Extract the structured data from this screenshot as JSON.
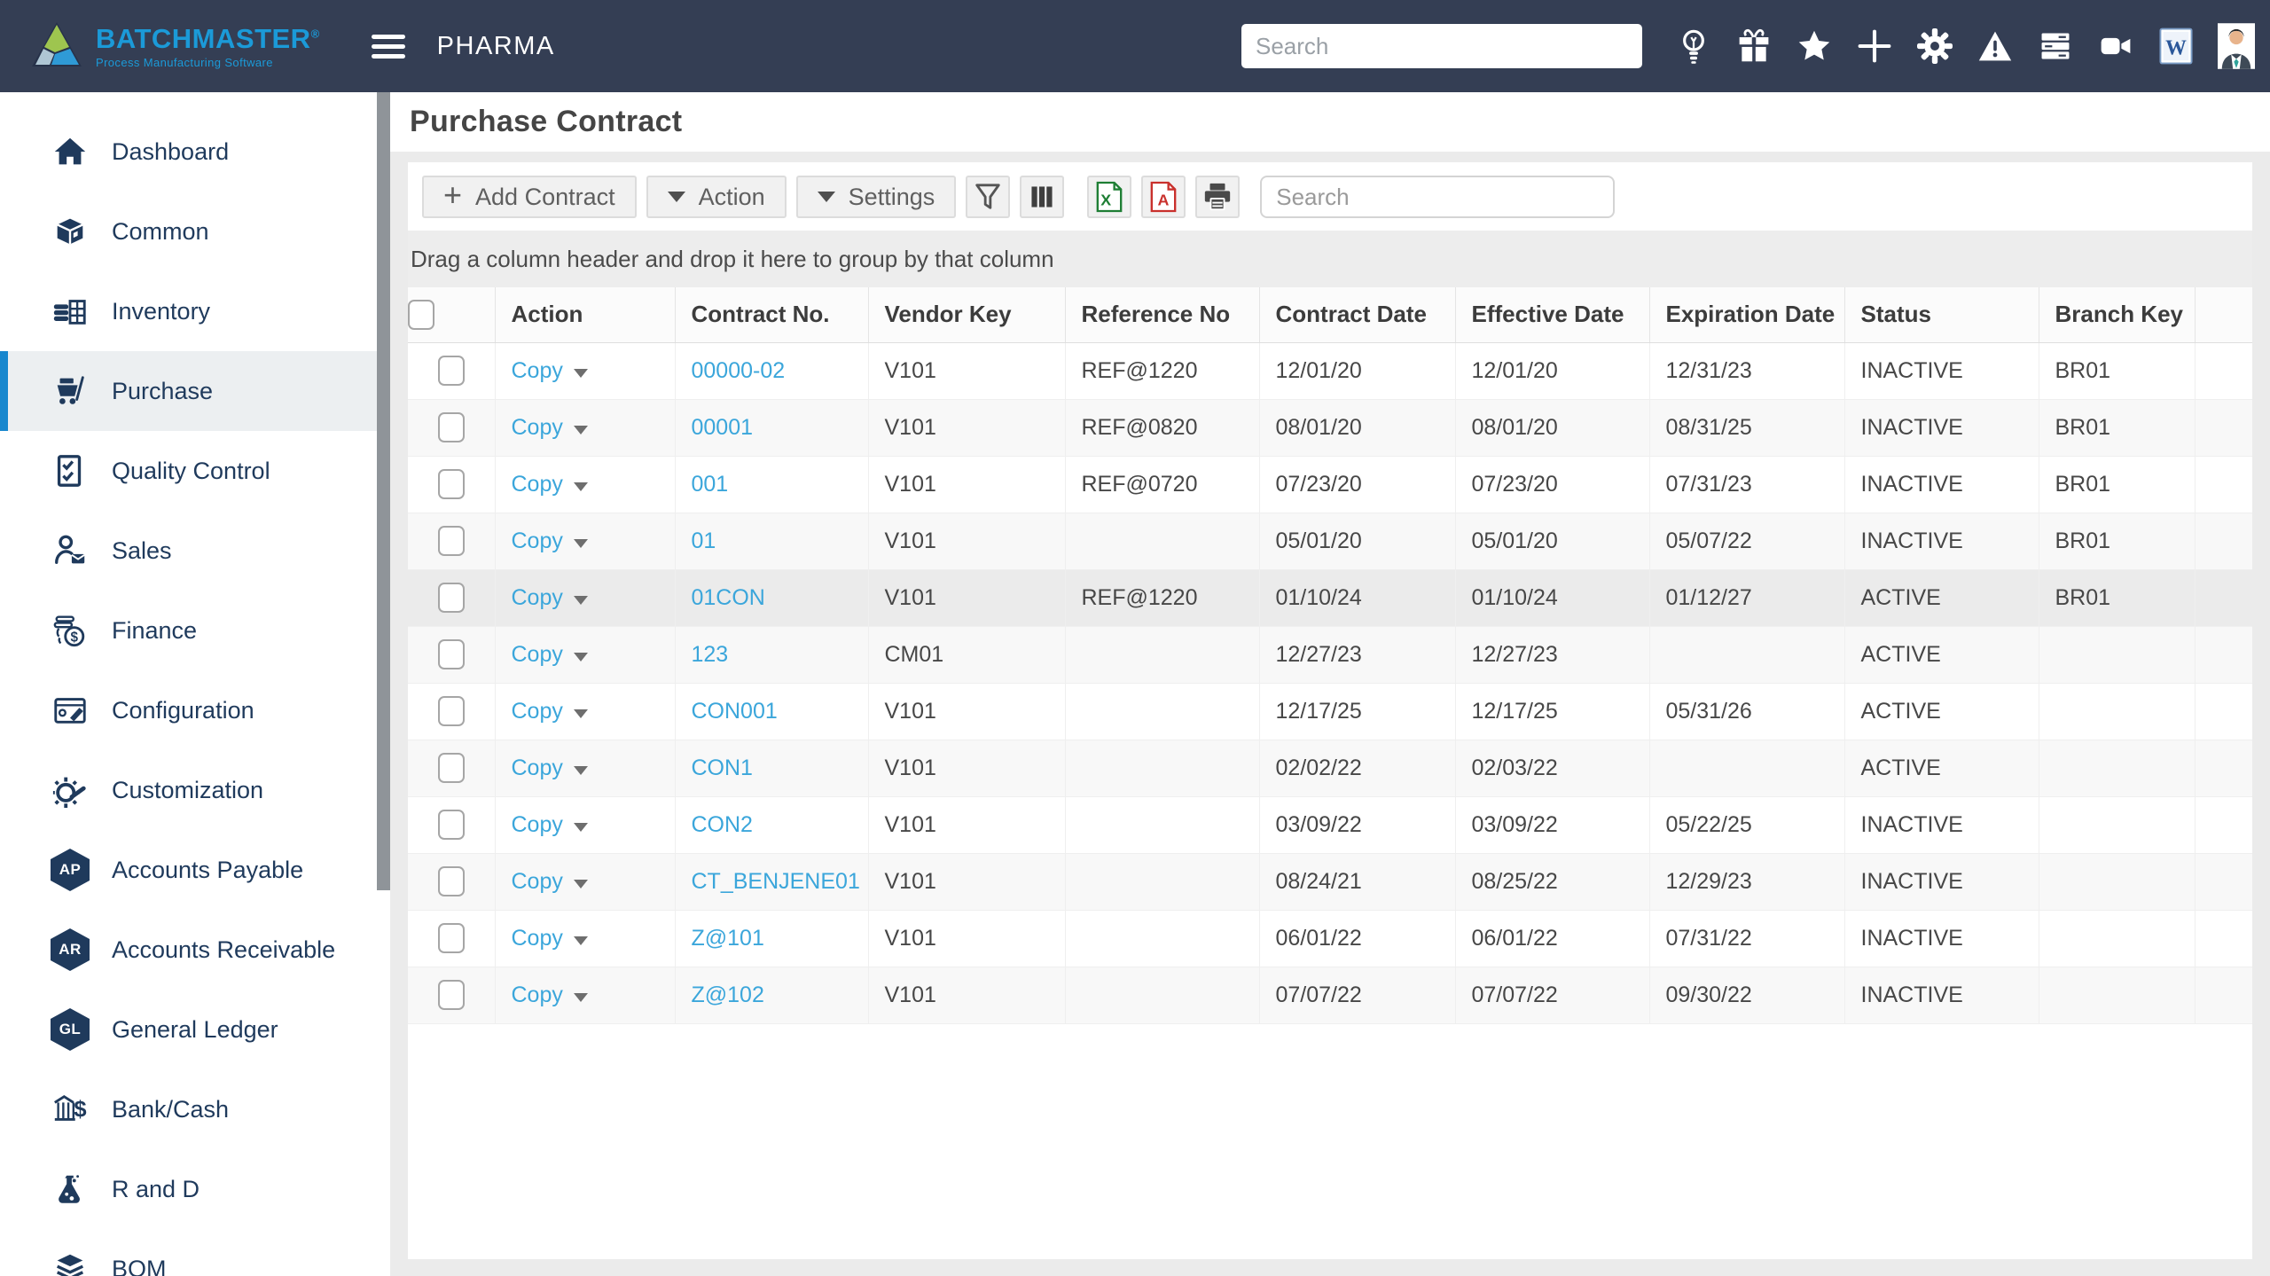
{
  "header": {
    "brand": "BATCHMASTER",
    "brand_registered": "®",
    "brand_tagline": "Process Manufacturing Software",
    "app_title": "PHARMA",
    "search": {
      "placeholder": "Search"
    },
    "icons": [
      {
        "name": "lightbulb-icon"
      },
      {
        "name": "gift-icon"
      },
      {
        "name": "star-icon"
      },
      {
        "name": "plus-icon"
      },
      {
        "name": "gear-icon"
      },
      {
        "name": "warning-icon"
      },
      {
        "name": "server-icon"
      },
      {
        "name": "video-camera-icon"
      },
      {
        "name": "word-document-icon"
      },
      {
        "name": "user-avatar"
      }
    ]
  },
  "sidebar": {
    "items": [
      {
        "label": "Dashboard",
        "icon": "home-icon",
        "active": false
      },
      {
        "label": "Common",
        "icon": "box-icon",
        "active": false
      },
      {
        "label": "Inventory",
        "icon": "inventory-icon",
        "active": false
      },
      {
        "label": "Purchase",
        "icon": "cart-icon",
        "active": true
      },
      {
        "label": "Quality Control",
        "icon": "quality-check-icon",
        "active": false
      },
      {
        "label": "Sales",
        "icon": "sales-person-icon",
        "active": false
      },
      {
        "label": "Finance",
        "icon": "finance-coins-icon",
        "active": false
      },
      {
        "label": "Configuration",
        "icon": "configuration-icon",
        "active": false
      },
      {
        "label": "Customization",
        "icon": "customization-icon",
        "active": false
      },
      {
        "label": "Accounts Payable",
        "icon": "badge",
        "badge": "AP",
        "active": false
      },
      {
        "label": "Accounts Receivable",
        "icon": "badge",
        "badge": "AR",
        "active": false
      },
      {
        "label": "General Ledger",
        "icon": "badge",
        "badge": "GL",
        "active": false
      },
      {
        "label": "Bank/Cash",
        "icon": "bank-icon",
        "active": false
      },
      {
        "label": "R and D",
        "icon": "flask-icon",
        "active": false
      },
      {
        "label": "BOM",
        "icon": "bom-layers-icon",
        "active": false
      }
    ]
  },
  "page": {
    "title": "Purchase Contract",
    "toolbar": {
      "add_contract_label": "Add Contract",
      "action_label": "Action",
      "settings_label": "Settings",
      "search_placeholder": "Search"
    },
    "group_hint": "Drag a column header and drop it here to group by that column",
    "table": {
      "copy_label": "Copy",
      "columns": [
        "Action",
        "Contract No.",
        "Vendor Key",
        "Reference No",
        "Contract Date",
        "Effective Date",
        "Expiration Date",
        "Status",
        "Branch Key"
      ],
      "rows": [
        {
          "contract_no": "00000-02",
          "vendor_key": "V101",
          "reference_no": "REF@1220",
          "contract_date": "12/01/20",
          "effective_date": "12/01/20",
          "expiration_date": "12/31/23",
          "status": "INACTIVE",
          "branch_key": "BR01",
          "highlighted": false
        },
        {
          "contract_no": "00001",
          "vendor_key": "V101",
          "reference_no": "REF@0820",
          "contract_date": "08/01/20",
          "effective_date": "08/01/20",
          "expiration_date": "08/31/25",
          "status": "INACTIVE",
          "branch_key": "BR01",
          "highlighted": false
        },
        {
          "contract_no": "001",
          "vendor_key": "V101",
          "reference_no": "REF@0720",
          "contract_date": "07/23/20",
          "effective_date": "07/23/20",
          "expiration_date": "07/31/23",
          "status": "INACTIVE",
          "branch_key": "BR01",
          "highlighted": false
        },
        {
          "contract_no": "01",
          "vendor_key": "V101",
          "reference_no": "",
          "contract_date": "05/01/20",
          "effective_date": "05/01/20",
          "expiration_date": "05/07/22",
          "status": "INACTIVE",
          "branch_key": "BR01",
          "highlighted": false
        },
        {
          "contract_no": "01CON",
          "vendor_key": "V101",
          "reference_no": "REF@1220",
          "contract_date": "01/10/24",
          "effective_date": "01/10/24",
          "expiration_date": "01/12/27",
          "status": "ACTIVE",
          "branch_key": "BR01",
          "highlighted": true
        },
        {
          "contract_no": "123",
          "vendor_key": "CM01",
          "reference_no": "",
          "contract_date": "12/27/23",
          "effective_date": "12/27/23",
          "expiration_date": "",
          "status": "ACTIVE",
          "branch_key": "",
          "highlighted": false
        },
        {
          "contract_no": "CON001",
          "vendor_key": "V101",
          "reference_no": "",
          "contract_date": "12/17/25",
          "effective_date": "12/17/25",
          "expiration_date": "05/31/26",
          "status": "ACTIVE",
          "branch_key": "",
          "highlighted": false
        },
        {
          "contract_no": "CON1",
          "vendor_key": "V101",
          "reference_no": "",
          "contract_date": "02/02/22",
          "effective_date": "02/03/22",
          "expiration_date": "",
          "status": "ACTIVE",
          "branch_key": "",
          "highlighted": false
        },
        {
          "contract_no": "CON2",
          "vendor_key": "V101",
          "reference_no": "",
          "contract_date": "03/09/22",
          "effective_date": "03/09/22",
          "expiration_date": "05/22/25",
          "status": "INACTIVE",
          "branch_key": "",
          "highlighted": false
        },
        {
          "contract_no": "CT_BENJENE01",
          "vendor_key": "V101",
          "reference_no": "",
          "contract_date": "08/24/21",
          "effective_date": "08/25/22",
          "expiration_date": "12/29/23",
          "status": "INACTIVE",
          "branch_key": "",
          "highlighted": false
        },
        {
          "contract_no": "Z@101",
          "vendor_key": "V101",
          "reference_no": "",
          "contract_date": "06/01/22",
          "effective_date": "06/01/22",
          "expiration_date": "07/31/22",
          "status": "INACTIVE",
          "branch_key": "",
          "highlighted": false
        },
        {
          "contract_no": "Z@102",
          "vendor_key": "V101",
          "reference_no": "",
          "contract_date": "07/07/22",
          "effective_date": "07/07/22",
          "expiration_date": "09/30/22",
          "status": "INACTIVE",
          "branch_key": "",
          "highlighted": false
        }
      ]
    }
  },
  "colors": {
    "header_bg": "#343E54",
    "brand_blue": "#1B9AD8",
    "sidebar_text": "#1F3A5C",
    "active_accent": "#1887CE",
    "link_blue": "#3BA6DB",
    "excel_green": "#1E7E34",
    "pdf_red": "#C9302C",
    "row_highlight": "#EBEBEB"
  }
}
